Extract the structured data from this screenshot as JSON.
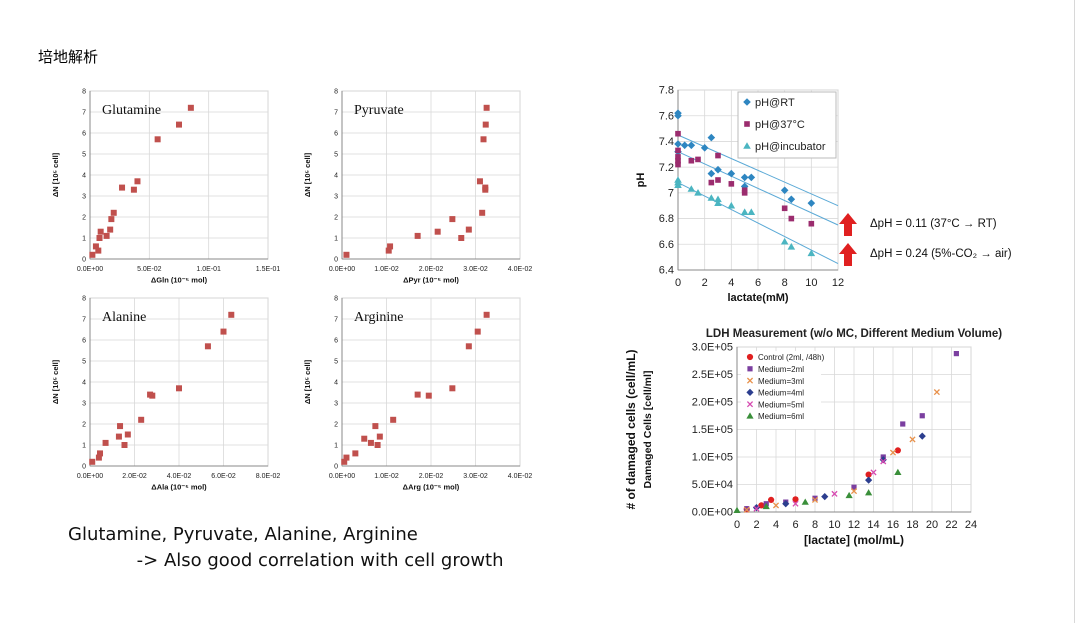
{
  "page": {
    "title": "培地解析",
    "caption_line1": "Glutamine, Pyruvate, Alanine, Arginine",
    "caption_line2": "            -> Also good correlation with cell growth"
  },
  "chart_data": [
    {
      "id": "gln",
      "type": "scatter",
      "title": "Glutamine",
      "xlabel": "ΔGln (10⁻⁵ mol)",
      "ylabel": "ΔN [10⁵ cell]",
      "xlim": [
        0,
        0.15
      ],
      "ylim": [
        0,
        8
      ],
      "xticks": [
        "0.0E+00",
        "5.0E-02",
        "1.0E-01",
        "1.5E-01"
      ],
      "yticks": [
        "0",
        "1",
        "2",
        "3",
        "4",
        "5",
        "6",
        "7",
        "8"
      ],
      "grid": true,
      "color": "#c0504d",
      "points": [
        [
          0.002,
          0.2
        ],
        [
          0.005,
          0.6
        ],
        [
          0.007,
          0.4
        ],
        [
          0.008,
          1.0
        ],
        [
          0.009,
          1.3
        ],
        [
          0.014,
          1.1
        ],
        [
          0.017,
          1.4
        ],
        [
          0.018,
          1.9
        ],
        [
          0.02,
          2.2
        ],
        [
          0.027,
          3.4
        ],
        [
          0.037,
          3.3
        ],
        [
          0.04,
          3.7
        ],
        [
          0.057,
          5.7
        ],
        [
          0.075,
          6.4
        ],
        [
          0.085,
          7.2
        ]
      ]
    },
    {
      "id": "pyr",
      "type": "scatter",
      "title": "Pyruvate",
      "xlabel": "ΔPyr (10⁻⁵ mol)",
      "ylabel": "ΔN [10⁵ cell]",
      "xlim": [
        0,
        0.04
      ],
      "ylim": [
        0,
        8
      ],
      "xticks": [
        "0.0E+00",
        "1.0E-02",
        "2.0E-02",
        "3.0E-02",
        "4.0E-02"
      ],
      "yticks": [
        "0",
        "1",
        "2",
        "3",
        "4",
        "5",
        "6",
        "7",
        "8"
      ],
      "grid": true,
      "color": "#c0504d",
      "points": [
        [
          0.001,
          0.2
        ],
        [
          0.0105,
          0.4
        ],
        [
          0.0108,
          0.6
        ],
        [
          0.017,
          1.1
        ],
        [
          0.0215,
          1.3
        ],
        [
          0.0248,
          1.9
        ],
        [
          0.0268,
          1.0
        ],
        [
          0.0285,
          1.4
        ],
        [
          0.031,
          3.7
        ],
        [
          0.0315,
          2.2
        ],
        [
          0.0318,
          5.7
        ],
        [
          0.0322,
          3.3
        ],
        [
          0.0322,
          3.4
        ],
        [
          0.0323,
          6.4
        ],
        [
          0.0325,
          7.2
        ]
      ]
    },
    {
      "id": "ala",
      "type": "scatter",
      "title": "Alanine",
      "xlabel": "ΔAla (10⁻⁵ mol)",
      "ylabel": "ΔN [10⁵ cell]",
      "xlim": [
        0,
        0.08
      ],
      "ylim": [
        0,
        8
      ],
      "xticks": [
        "0.0E+00",
        "2.0E-02",
        "4.0E-02",
        "6.0E-02",
        "8.0E-02"
      ],
      "yticks": [
        "0",
        "1",
        "2",
        "3",
        "4",
        "5",
        "6",
        "7",
        "8"
      ],
      "grid": true,
      "color": "#c0504d",
      "points": [
        [
          0.001,
          0.2
        ],
        [
          0.004,
          0.4
        ],
        [
          0.0045,
          0.6
        ],
        [
          0.007,
          1.1
        ],
        [
          0.013,
          1.4
        ],
        [
          0.0135,
          1.9
        ],
        [
          0.0155,
          1.0
        ],
        [
          0.017,
          1.5
        ],
        [
          0.023,
          2.2
        ],
        [
          0.027,
          3.4
        ],
        [
          0.028,
          3.35
        ],
        [
          0.04,
          3.7
        ],
        [
          0.053,
          5.7
        ],
        [
          0.06,
          6.4
        ],
        [
          0.0635,
          7.2
        ]
      ]
    },
    {
      "id": "arg",
      "type": "scatter",
      "title": "Arginine",
      "xlabel": "ΔArg (10⁻⁵ mol)",
      "ylabel": "ΔN [10⁵ cell]",
      "xlim": [
        0,
        0.04
      ],
      "ylim": [
        0,
        8
      ],
      "xticks": [
        "0.0E+00",
        "1.0E-02",
        "2.0E-02",
        "3.0E-02",
        "4.0E-02"
      ],
      "yticks": [
        "0",
        "1",
        "2",
        "3",
        "4",
        "5",
        "6",
        "7",
        "8"
      ],
      "grid": true,
      "color": "#c0504d",
      "points": [
        [
          0.0005,
          0.2
        ],
        [
          0.001,
          0.4
        ],
        [
          0.003,
          0.6
        ],
        [
          0.005,
          1.3
        ],
        [
          0.0065,
          1.1
        ],
        [
          0.0075,
          1.9
        ],
        [
          0.008,
          1.0
        ],
        [
          0.0085,
          1.4
        ],
        [
          0.0115,
          2.2
        ],
        [
          0.017,
          3.4
        ],
        [
          0.0195,
          3.35
        ],
        [
          0.0248,
          3.7
        ],
        [
          0.0285,
          5.7
        ],
        [
          0.0305,
          6.4
        ],
        [
          0.0325,
          7.2
        ]
      ]
    },
    {
      "id": "ph",
      "type": "scatter",
      "title": "",
      "xlabel": "lactate(mM)",
      "ylabel": "pH",
      "xlim": [
        0,
        12
      ],
      "ylim": [
        6.4,
        7.8
      ],
      "xticks": [
        "0",
        "2",
        "4",
        "6",
        "8",
        "10",
        "12"
      ],
      "yticks": [
        "6.4",
        "6.6",
        "6.8",
        "7",
        "7.2",
        "7.4",
        "7.6",
        "7.8"
      ],
      "grid": true,
      "legend": "top-right",
      "annotations": [
        "ΔpH = 0.11 (37°C → RT)",
        "ΔpH = 0.24 (5%-CO₂ → air)"
      ],
      "series": [
        {
          "name": "pH@RT",
          "color": "#2e86c1",
          "marker": "diamond",
          "points": [
            [
              0,
              7.62
            ],
            [
              0,
              7.6
            ],
            [
              0,
              7.38
            ],
            [
              0,
              7.32
            ],
            [
              0.5,
              7.37
            ],
            [
              1,
              7.37
            ],
            [
              2,
              7.35
            ],
            [
              2.5,
              7.43
            ],
            [
              3,
              7.18
            ],
            [
              2.5,
              7.15
            ],
            [
              4,
              7.15
            ],
            [
              5,
              7.12
            ],
            [
              5.5,
              7.12
            ],
            [
              5,
              7.05
            ],
            [
              8,
              7.02
            ],
            [
              8.5,
              6.95
            ],
            [
              10,
              6.92
            ]
          ]
        },
        {
          "name": "pH@37°C",
          "color": "#9b2c6e",
          "marker": "square",
          "points": [
            [
              0,
              7.46
            ],
            [
              0,
              7.33
            ],
            [
              0,
              7.28
            ],
            [
              0,
              7.25
            ],
            [
              0,
              7.22
            ],
            [
              1,
              7.25
            ],
            [
              1.5,
              7.26
            ],
            [
              2.5,
              7.08
            ],
            [
              3,
              7.29
            ],
            [
              3,
              7.1
            ],
            [
              4,
              7.07
            ],
            [
              5,
              7.0
            ],
            [
              5,
              7.02
            ],
            [
              8,
              6.88
            ],
            [
              8.5,
              6.8
            ],
            [
              10,
              6.76
            ]
          ]
        },
        {
          "name": "pH@incubator",
          "color": "#4bb5c1",
          "marker": "triangle",
          "points": [
            [
              0,
              7.1
            ],
            [
              0,
              7.08
            ],
            [
              0,
              7.06
            ],
            [
              1,
              7.03
            ],
            [
              1.5,
              7.0
            ],
            [
              2.5,
              6.96
            ],
            [
              3,
              6.95
            ],
            [
              3,
              6.92
            ],
            [
              4,
              6.9
            ],
            [
              5,
              6.85
            ],
            [
              5.5,
              6.85
            ],
            [
              8,
              6.62
            ],
            [
              8.5,
              6.58
            ],
            [
              10,
              6.53
            ]
          ]
        }
      ],
      "fit_lines": [
        [
          [
            0,
            7.45
          ],
          [
            12,
            6.9
          ]
        ],
        [
          [
            0,
            7.32
          ],
          [
            12,
            6.75
          ]
        ],
        [
          [
            0,
            7.08
          ],
          [
            12,
            6.45
          ]
        ]
      ]
    },
    {
      "id": "ldh",
      "type": "scatter",
      "title": "LDH Measurement (w/o MC, Different Medium Volume)",
      "xlabel": "[lactate] (mol/mL)",
      "ylabel": "# of damaged cells  (cell/mL)",
      "ylabel2": "Damaged Cells [cell/ml]",
      "xlim": [
        0,
        24
      ],
      "ylim": [
        0,
        300000
      ],
      "xticks": [
        "0",
        "2",
        "4",
        "6",
        "8",
        "10",
        "12",
        "14",
        "16",
        "18",
        "20",
        "22",
        "24"
      ],
      "yticks": [
        "0.0E+00",
        "5.0E+04",
        "1.0E+05",
        "1.5E+05",
        "2.0E+05",
        "2.5E+05",
        "3.0E+05"
      ],
      "grid": true,
      "legend": "top-left",
      "series": [
        {
          "name": "Control (2ml, /48h)",
          "color": "#e02020",
          "marker": "circle",
          "points": [
            [
              1,
              5000
            ],
            [
              2.5,
              12000
            ],
            [
              3.5,
              22000
            ],
            [
              6,
              23000
            ],
            [
              13.5,
              68000
            ],
            [
              16.5,
              112000
            ]
          ]
        },
        {
          "name": "Medium=2ml",
          "color": "#7b3fa0",
          "marker": "square",
          "points": [
            [
              1,
              6000
            ],
            [
              3,
              15000
            ],
            [
              5,
              18000
            ],
            [
              8,
              25000
            ],
            [
              12,
              45000
            ],
            [
              15,
              100000
            ],
            [
              17,
              160000
            ],
            [
              19,
              175000
            ],
            [
              22.5,
              288000
            ]
          ]
        },
        {
          "name": "Medium=3ml",
          "color": "#e8914b",
          "marker": "x",
          "points": [
            [
              1,
              4000
            ],
            [
              4,
              12000
            ],
            [
              8,
              22000
            ],
            [
              12,
              38000
            ],
            [
              16,
              108000
            ],
            [
              18,
              132000
            ],
            [
              20.5,
              218000
            ]
          ]
        },
        {
          "name": "Medium=4ml",
          "color": "#2c3e8f",
          "marker": "diamond",
          "points": [
            [
              2,
              8000
            ],
            [
              5,
              15000
            ],
            [
              9,
              28000
            ],
            [
              13.5,
              58000
            ],
            [
              15,
              95000
            ],
            [
              19,
              138000
            ]
          ]
        },
        {
          "name": "Medium=5ml",
          "color": "#d64ab0",
          "marker": "x",
          "points": [
            [
              2,
              6000
            ],
            [
              6,
              15000
            ],
            [
              10,
              33000
            ],
            [
              14,
              72000
            ],
            [
              15,
              92000
            ]
          ]
        },
        {
          "name": "Medium=6ml",
          "color": "#3a8f3a",
          "marker": "triangle",
          "points": [
            [
              0,
              3000
            ],
            [
              3,
              10000
            ],
            [
              7,
              18000
            ],
            [
              11.5,
              30000
            ],
            [
              13.5,
              35000
            ],
            [
              16.5,
              72000
            ]
          ]
        }
      ]
    }
  ]
}
